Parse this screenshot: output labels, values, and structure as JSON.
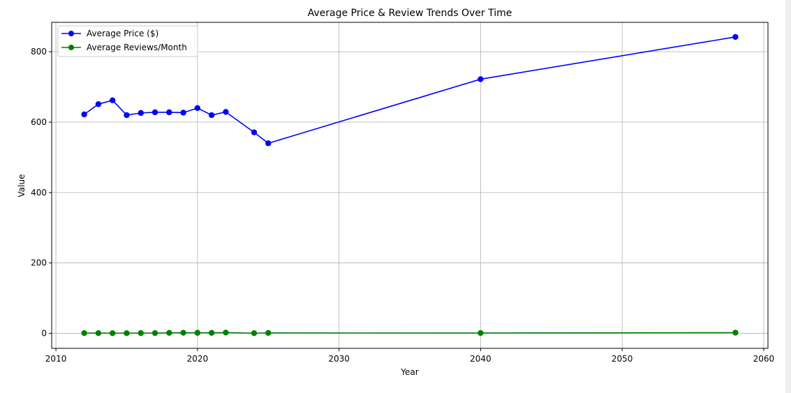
{
  "chart_data": {
    "type": "line",
    "title": "Average Price & Review Trends Over Time",
    "xlabel": "Year",
    "ylabel": "Value",
    "xlim": [
      2009.7,
      2060.3
    ],
    "ylim": [
      -42.5,
      883.5
    ],
    "x_ticks": [
      2010,
      2020,
      2030,
      2040,
      2050,
      2060
    ],
    "y_ticks": [
      0,
      200,
      400,
      600,
      800
    ],
    "grid": true,
    "legend_position": "top-left",
    "x": [
      2012,
      2013,
      2014,
      2015,
      2016,
      2017,
      2018,
      2019,
      2020,
      2021,
      2022,
      2024,
      2025,
      2040,
      2058
    ],
    "series": [
      {
        "name": "Average Price ($)",
        "color": "#0000ff",
        "values": [
          622,
          651,
          662,
          620,
          626,
          628,
          628,
          627,
          640,
          620,
          629,
          571,
          540,
          722,
          842
        ]
      },
      {
        "name": "Average Reviews/Month",
        "color": "#008000",
        "values": [
          0.8,
          0.7,
          0.6,
          0.6,
          0.7,
          0.8,
          1.5,
          1.8,
          1.6,
          1.5,
          2.2,
          0.5,
          1.2,
          1.0,
          2.0
        ]
      }
    ]
  }
}
